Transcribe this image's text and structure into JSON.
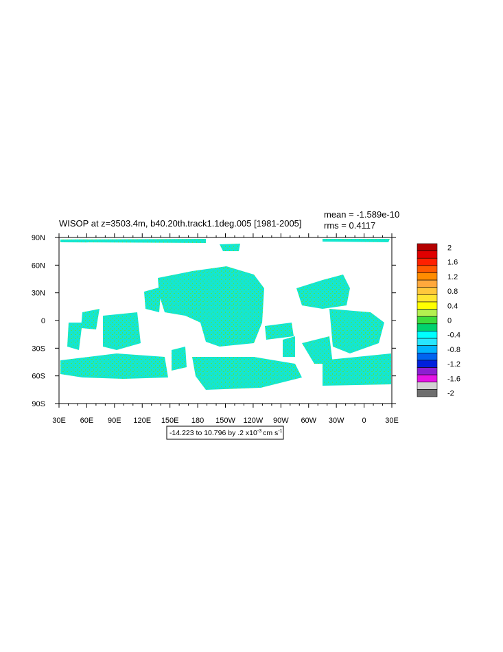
{
  "title": "WISOP at z=3503.4m, b40.20th.track1.1deg.005 [1981-2005]",
  "stats": {
    "mean": "mean = -1.589e-10",
    "rms": "rms = 0.4117"
  },
  "lat_labels": [
    "90N",
    "60N",
    "30N",
    "0",
    "30S",
    "60S",
    "90S"
  ],
  "lon_labels": [
    "30E",
    "60E",
    "90E",
    "120E",
    "150E",
    "180",
    "150W",
    "120W",
    "90W",
    "60W",
    "30W",
    "0",
    "30E"
  ],
  "info": {
    "text": "-14.223 to 10.796 by .2 x10",
    "exp": "-3",
    "unit": "cm s",
    "unit_exp": "-1"
  },
  "colorbar": {
    "labels": [
      2,
      1.6,
      1.2,
      0.8,
      0.4,
      0,
      -0.4,
      -0.8,
      -1.2,
      -1.6,
      -2
    ],
    "colors": [
      "#b40000",
      "#e00000",
      "#ff2000",
      "#ff5a00",
      "#ff8c00",
      "#ffa83c",
      "#ffc83c",
      "#ffe632",
      "#ffff00",
      "#b4f050",
      "#3cdc3c",
      "#00d26e",
      "#00ffff",
      "#28e6ff",
      "#00b4ff",
      "#0064f0",
      "#0020dc",
      "#8c1ed2",
      "#e614e6",
      "#d2d2d2",
      "#6e6e6e"
    ]
  }
}
